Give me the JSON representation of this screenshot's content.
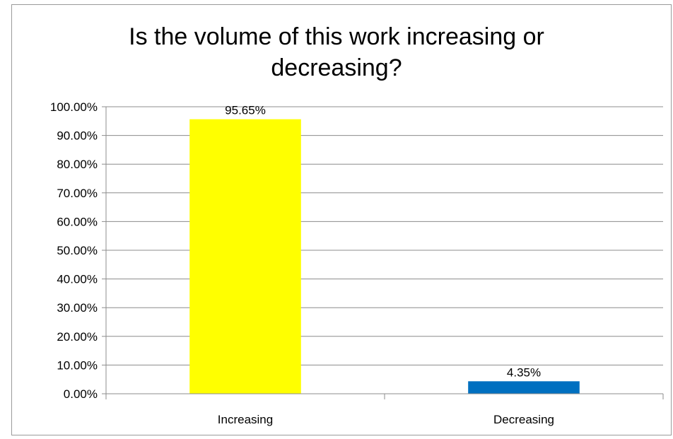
{
  "chart_data": {
    "type": "bar",
    "title": "Is the volume of this work increasing or\ndecreasing?",
    "categories": [
      "Increasing",
      "Decreasing"
    ],
    "values": [
      95.65,
      4.35
    ],
    "data_labels": [
      "95.65%",
      "4.35%"
    ],
    "bar_colors": [
      "#ffff00",
      "#0070c0"
    ],
    "ylim": [
      0,
      100
    ],
    "yticks": [
      0,
      10,
      20,
      30,
      40,
      50,
      60,
      70,
      80,
      90,
      100
    ],
    "ytick_labels": [
      "0.00%",
      "10.00%",
      "20.00%",
      "30.00%",
      "40.00%",
      "50.00%",
      "60.00%",
      "70.00%",
      "80.00%",
      "90.00%",
      "100.00%"
    ],
    "grid": true,
    "legend": "none"
  }
}
